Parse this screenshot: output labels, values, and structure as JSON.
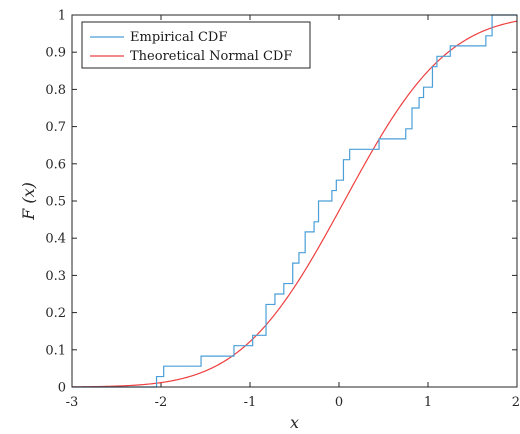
{
  "chart_data": {
    "type": "line",
    "xlabel": "x",
    "ylabel": "F (x)",
    "xlim": [
      -3,
      2
    ],
    "ylim": [
      0,
      1
    ],
    "xticks": [
      -3,
      -2,
      -1,
      0,
      1,
      2
    ],
    "yticks": [
      0,
      0.1,
      0.2,
      0.3,
      0.4,
      0.5,
      0.6,
      0.7,
      0.8,
      0.9,
      1
    ],
    "grid": false,
    "legend_position": "top-left",
    "series": [
      {
        "name": "Empirical CDF",
        "color": "#4a9fd8",
        "style": "step",
        "x": [
          -3,
          -2.05,
          -1.97,
          -1.55,
          -1.18,
          -0.97,
          -0.82,
          -0.72,
          -0.62,
          -0.52,
          -0.45,
          -0.38,
          -0.28,
          -0.23,
          -0.17,
          -0.08,
          -0.03,
          0.05,
          0.12,
          0.45,
          0.75,
          0.82,
          0.9,
          0.95,
          1.05,
          1.1,
          1.25,
          1.65,
          1.72,
          2
        ],
        "y": [
          0,
          0.028,
          0.056,
          0.083,
          0.111,
          0.139,
          0.222,
          0.25,
          0.278,
          0.333,
          0.361,
          0.417,
          0.444,
          0.5,
          0.5,
          0.528,
          0.556,
          0.611,
          0.639,
          0.667,
          0.694,
          0.75,
          0.778,
          0.806,
          0.861,
          0.889,
          0.917,
          0.944,
          1,
          1
        ]
      },
      {
        "name": "Theoretical Normal CDF",
        "color": "#ee4040",
        "style": "line",
        "mu": 0.06,
        "sigma": 0.91
      }
    ]
  }
}
